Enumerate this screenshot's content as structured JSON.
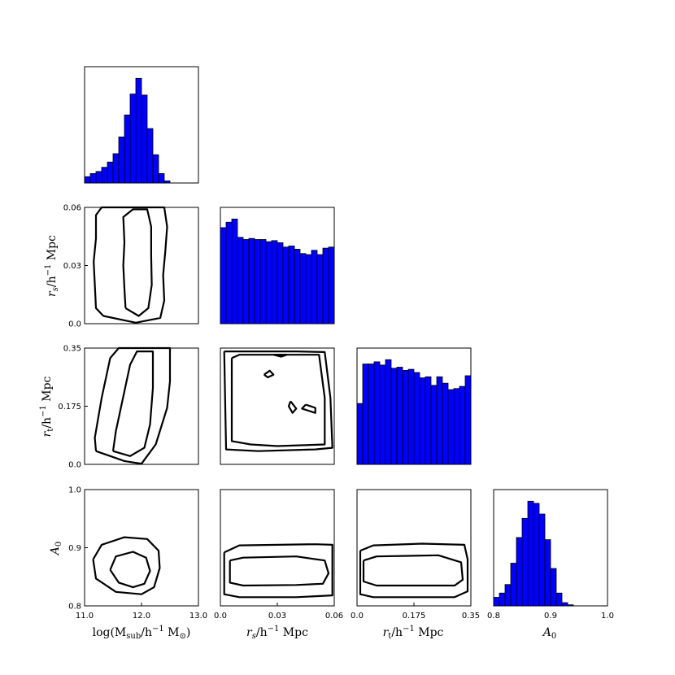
{
  "chart_data": {
    "type": "corner",
    "parameters": [
      {
        "key": "logM",
        "label": "log(M_sub/h^-1 M_⊙)",
        "range": [
          11.0,
          13.0
        ],
        "ticks": [
          "11.0",
          "12.0",
          "13.0"
        ]
      },
      {
        "key": "rs",
        "label": "r_s/h^-1 Mpc",
        "range": [
          0.0,
          0.06
        ],
        "ticks": [
          "0.0",
          "0.03",
          "0.06"
        ]
      },
      {
        "key": "rt",
        "label": "r_t/h^-1 Mpc",
        "range": [
          0.0,
          0.35
        ],
        "ticks": [
          "0.0",
          "0.175",
          "0.35"
        ]
      },
      {
        "key": "A0",
        "label": "A_0",
        "range": [
          0.8,
          1.0
        ],
        "ticks": [
          "0.8",
          "0.9",
          "1.0"
        ]
      }
    ],
    "histograms": [
      {
        "param": "logM",
        "bins": 20,
        "values": [
          6,
          9,
          11,
          15,
          20,
          28,
          44,
          65,
          85,
          100,
          84,
          52,
          27,
          9,
          2,
          0,
          0,
          0,
          0,
          0
        ]
      },
      {
        "param": "rs",
        "bins": 20,
        "values": [
          89,
          94,
          97,
          80,
          78,
          79,
          78,
          78,
          76,
          77,
          75,
          71,
          72,
          69,
          65,
          64,
          68,
          64,
          70,
          71
        ]
      },
      {
        "param": "rt",
        "bins": 20,
        "values": [
          57,
          94,
          94,
          96,
          93,
          98,
          90,
          91,
          88,
          89,
          86,
          81,
          82,
          74,
          82,
          76,
          70,
          71,
          73,
          83
        ]
      },
      {
        "param": "A0",
        "bins": 20,
        "values": [
          8,
          12,
          20,
          40,
          64,
          82,
          98,
          96,
          86,
          62,
          35,
          12,
          3,
          1,
          0,
          0,
          0,
          0,
          0,
          0
        ]
      }
    ],
    "contours": [
      {
        "x": "logM",
        "y": "rs",
        "levels": [
          [
            [
              11.33,
              0.004
            ],
            [
              11.2,
              0.008
            ],
            [
              11.18,
              0.02
            ],
            [
              11.16,
              0.032
            ],
            [
              11.2,
              0.044
            ],
            [
              11.2,
              0.056
            ],
            [
              11.3,
              0.06
            ],
            [
              12.4,
              0.06
            ],
            [
              12.45,
              0.05
            ],
            [
              12.42,
              0.038
            ],
            [
              12.38,
              0.025
            ],
            [
              12.4,
              0.012
            ],
            [
              12.33,
              0.003
            ],
            [
              11.9,
              0.0005
            ],
            [
              11.33,
              0.004
            ]
          ],
          [
            [
              11.72,
              0.008
            ],
            [
              11.7,
              0.018
            ],
            [
              11.68,
              0.03
            ],
            [
              11.7,
              0.042
            ],
            [
              11.68,
              0.055
            ],
            [
              11.85,
              0.059
            ],
            [
              12.1,
              0.059
            ],
            [
              12.17,
              0.05
            ],
            [
              12.17,
              0.035
            ],
            [
              12.18,
              0.02
            ],
            [
              12.12,
              0.008
            ],
            [
              11.95,
              0.004
            ],
            [
              11.72,
              0.008
            ]
          ]
        ]
      },
      {
        "x": "logM",
        "y": "rt",
        "levels": [
          [
            [
              11.2,
              0.04
            ],
            [
              11.18,
              0.08
            ],
            [
              11.3,
              0.2
            ],
            [
              11.45,
              0.32
            ],
            [
              11.6,
              0.35
            ],
            [
              12.5,
              0.35
            ],
            [
              12.5,
              0.25
            ],
            [
              12.45,
              0.17
            ],
            [
              12.25,
              0.06
            ],
            [
              12.0,
              0.002
            ],
            [
              11.7,
              0.01
            ],
            [
              11.2,
              0.04
            ]
          ],
          [
            [
              11.5,
              0.04
            ],
            [
              11.55,
              0.1
            ],
            [
              11.7,
              0.22
            ],
            [
              11.8,
              0.3
            ],
            [
              11.92,
              0.34
            ],
            [
              12.2,
              0.34
            ],
            [
              12.2,
              0.23
            ],
            [
              12.15,
              0.12
            ],
            [
              12.05,
              0.05
            ],
            [
              11.8,
              0.025
            ],
            [
              11.5,
              0.04
            ]
          ]
        ]
      },
      {
        "x": "rs",
        "y": "rt",
        "levels": [
          [
            [
              0.002,
              0.34
            ],
            [
              0.04,
              0.34
            ],
            [
              0.055,
              0.338
            ],
            [
              0.058,
              0.2
            ],
            [
              0.059,
              0.05
            ],
            [
              0.05,
              0.045
            ],
            [
              0.02,
              0.04
            ],
            [
              0.003,
              0.045
            ],
            [
              0.002,
              0.34
            ]
          ],
          [
            [
              0.006,
              0.32
            ],
            [
              0.01,
              0.33
            ],
            [
              0.03,
              0.33
            ],
            [
              0.052,
              0.33
            ],
            [
              0.055,
              0.2
            ],
            [
              0.055,
              0.06
            ],
            [
              0.03,
              0.055
            ],
            [
              0.016,
              0.06
            ],
            [
              0.006,
              0.07
            ],
            [
              0.006,
              0.32
            ]
          ],
          [
            [
              0.028,
              0.33
            ],
            [
              0.032,
              0.324
            ],
            [
              0.035,
              0.33
            ],
            [
              0.028,
              0.33
            ]
          ],
          [
            [
              0.023,
              0.27
            ],
            [
              0.026,
              0.282
            ],
            [
              0.028,
              0.27
            ],
            [
              0.025,
              0.262
            ],
            [
              0.023,
              0.27
            ]
          ],
          [
            [
              0.037,
              0.19
            ],
            [
              0.04,
              0.168
            ],
            [
              0.038,
              0.155
            ],
            [
              0.036,
              0.175
            ],
            [
              0.037,
              0.19
            ]
          ],
          [
            [
              0.045,
              0.18
            ],
            [
              0.05,
              0.17
            ],
            [
              0.05,
              0.155
            ],
            [
              0.043,
              0.168
            ],
            [
              0.045,
              0.18
            ]
          ]
        ]
      },
      {
        "x": "logM",
        "y": "A0",
        "levels": [
          [
            [
              11.15,
              0.88
            ],
            [
              11.3,
              0.905
            ],
            [
              11.7,
              0.918
            ],
            [
              12.1,
              0.915
            ],
            [
              12.3,
              0.895
            ],
            [
              12.32,
              0.865
            ],
            [
              12.22,
              0.832
            ],
            [
              12.0,
              0.82
            ],
            [
              11.55,
              0.824
            ],
            [
              11.2,
              0.847
            ],
            [
              11.15,
              0.88
            ]
          ],
          [
            [
              11.45,
              0.862
            ],
            [
              11.55,
              0.885
            ],
            [
              11.85,
              0.893
            ],
            [
              12.08,
              0.883
            ],
            [
              12.15,
              0.86
            ],
            [
              12.05,
              0.838
            ],
            [
              11.85,
              0.832
            ],
            [
              11.6,
              0.84
            ],
            [
              11.45,
              0.862
            ]
          ]
        ]
      },
      {
        "x": "rs",
        "y": "A0",
        "levels": [
          [
            [
              0.002,
              0.892
            ],
            [
              0.01,
              0.904
            ],
            [
              0.05,
              0.906
            ],
            [
              0.059,
              0.905
            ],
            [
              0.059,
              0.818
            ],
            [
              0.04,
              0.815
            ],
            [
              0.01,
              0.815
            ],
            [
              0.002,
              0.82
            ],
            [
              0.002,
              0.892
            ]
          ],
          [
            [
              0.005,
              0.878
            ],
            [
              0.012,
              0.883
            ],
            [
              0.04,
              0.885
            ],
            [
              0.055,
              0.878
            ],
            [
              0.057,
              0.856
            ],
            [
              0.054,
              0.838
            ],
            [
              0.04,
              0.836
            ],
            [
              0.012,
              0.835
            ],
            [
              0.005,
              0.84
            ],
            [
              0.005,
              0.878
            ]
          ]
        ]
      },
      {
        "x": "rt",
        "y": "A0",
        "levels": [
          [
            [
              0.01,
              0.895
            ],
            [
              0.05,
              0.904
            ],
            [
              0.2,
              0.907
            ],
            [
              0.33,
              0.905
            ],
            [
              0.34,
              0.88
            ],
            [
              0.34,
              0.825
            ],
            [
              0.3,
              0.815
            ],
            [
              0.05,
              0.815
            ],
            [
              0.01,
              0.82
            ],
            [
              0.01,
              0.895
            ]
          ],
          [
            [
              0.02,
              0.878
            ],
            [
              0.06,
              0.885
            ],
            [
              0.25,
              0.887
            ],
            [
              0.32,
              0.875
            ],
            [
              0.325,
              0.845
            ],
            [
              0.3,
              0.835
            ],
            [
              0.06,
              0.835
            ],
            [
              0.02,
              0.842
            ],
            [
              0.02,
              0.878
            ]
          ]
        ]
      }
    ]
  }
}
